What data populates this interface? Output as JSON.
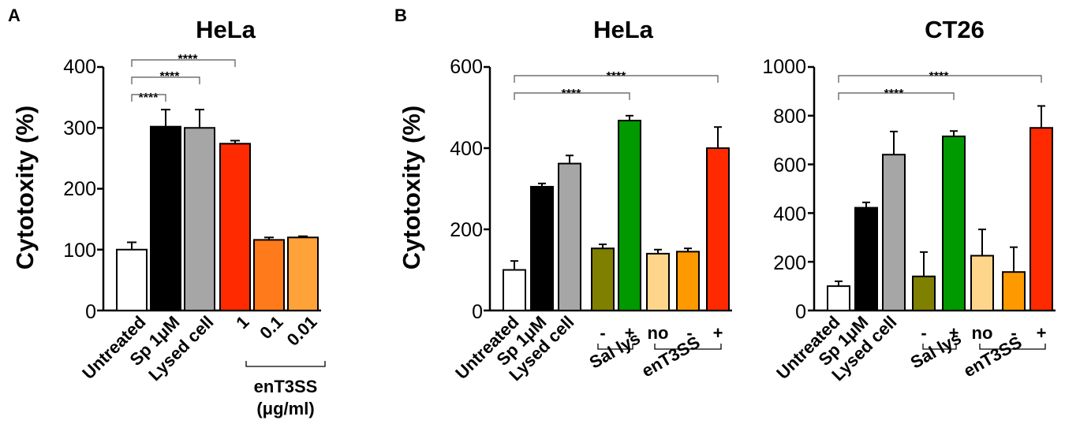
{
  "panels": {
    "a": {
      "letter": "A"
    },
    "b": {
      "letter": "B"
    }
  },
  "chart_data": [
    {
      "type": "bar",
      "title": "HeLa",
      "ylabel": "Cytotoxity (%)",
      "xlabel": "",
      "ylim": [
        0,
        400
      ],
      "yticks": [
        "0",
        "100",
        "200",
        "300",
        "400"
      ],
      "categories": [
        "Untreated",
        "Sp 1μM",
        "Lysed cell",
        "1",
        "0.1",
        "0.01"
      ],
      "values": [
        100,
        302,
        300,
        274,
        116,
        120
      ],
      "errors": [
        12,
        28,
        30,
        5,
        4,
        2
      ],
      "colors": [
        "#ffffff",
        "#000000",
        "#a6a6a6",
        "#ff2a00",
        "#ff7a1a",
        "#ffa23a"
      ],
      "group": {
        "label": "enT3SS",
        "sublabel": "(μg/ml)"
      },
      "significance": [
        {
          "label": "****"
        },
        {
          "label": "****"
        },
        {
          "label": "****"
        }
      ]
    },
    {
      "type": "bar",
      "title": "HeLa",
      "ylabel": "Cytotoxity (%)",
      "xlabel": "",
      "ylim": [
        0,
        600
      ],
      "yticks": [
        "0",
        "200",
        "400",
        "600"
      ],
      "categories": [
        "Untreated",
        "Sp 1μM",
        "Lysed cell",
        "-",
        "+",
        "no",
        "-",
        "+"
      ],
      "values": [
        100,
        305,
        362,
        153,
        468,
        140,
        145,
        400
      ],
      "errors": [
        22,
        8,
        20,
        10,
        12,
        10,
        8,
        52
      ],
      "colors": [
        "#ffffff",
        "#000000",
        "#a6a6a6",
        "#7f7f00",
        "#009900",
        "#ffd58c",
        "#ff9900",
        "#ff2a00"
      ],
      "groups": [
        {
          "label": "Sal lys"
        },
        {
          "label": "enT3SS"
        }
      ],
      "significance": [
        {
          "label": "****"
        },
        {
          "label": "****"
        }
      ]
    },
    {
      "type": "bar",
      "title": "CT26",
      "ylabel": "",
      "xlabel": "",
      "ylim": [
        0,
        1000
      ],
      "yticks": [
        "0",
        "200",
        "400",
        "600",
        "800",
        "1000"
      ],
      "categories": [
        "Untreated",
        "Sp 1μM",
        "Lysed cell",
        "-",
        "+",
        "no",
        "-",
        "+"
      ],
      "values": [
        100,
        422,
        640,
        140,
        715,
        225,
        158,
        750
      ],
      "errors": [
        20,
        22,
        95,
        100,
        22,
        108,
        102,
        90
      ],
      "colors": [
        "#ffffff",
        "#000000",
        "#a6a6a6",
        "#7f7f00",
        "#009900",
        "#ffd58c",
        "#ff9900",
        "#ff2a00"
      ],
      "groups": [
        {
          "label": "Sal lys"
        },
        {
          "label": "enT3SS"
        }
      ],
      "significance": [
        {
          "label": "****"
        },
        {
          "label": "****"
        }
      ]
    }
  ]
}
